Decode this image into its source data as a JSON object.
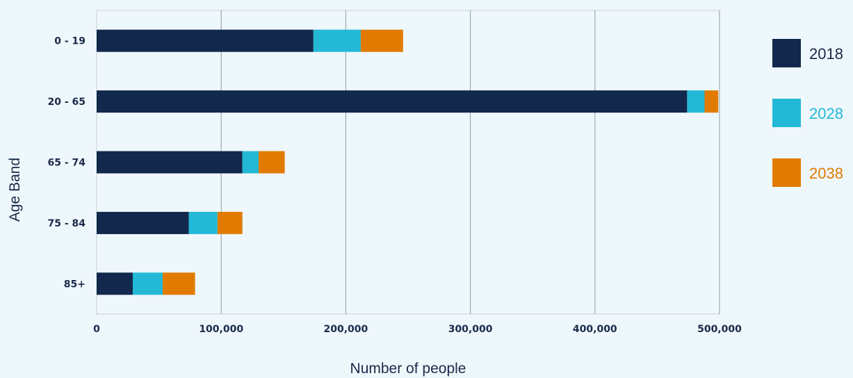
{
  "chart_data": {
    "type": "bar",
    "orientation": "horizontal",
    "stacked": true,
    "categories": [
      "0 - 19",
      "20 - 65",
      "65 - 74",
      "75 - 84",
      "85+"
    ],
    "series": [
      {
        "name": "2018",
        "color": "#12284c",
        "values": [
          174000,
          474000,
          117000,
          74000,
          29000
        ]
      },
      {
        "name": "2028",
        "color": "#23b9d6",
        "values": [
          38000,
          14000,
          13000,
          23000,
          24000
        ]
      },
      {
        "name": "2038",
        "color": "#e07b00",
        "values": [
          34000,
          11000,
          21000,
          20000,
          26000
        ]
      }
    ],
    "xlabel": "Number of people",
    "ylabel": "Age Band",
    "xlim": [
      0,
      500000
    ],
    "xticks": [
      0,
      100000,
      200000,
      300000,
      400000,
      500000
    ],
    "xtick_labels": [
      "0",
      "100,000",
      "200,000",
      "300,000",
      "400,000",
      "500,000"
    ],
    "grid": "vertical",
    "legend_position": "right"
  },
  "colors": {
    "background": "#eef7fb",
    "grid": "#8c9aa3",
    "text": "#1a2a4a"
  }
}
